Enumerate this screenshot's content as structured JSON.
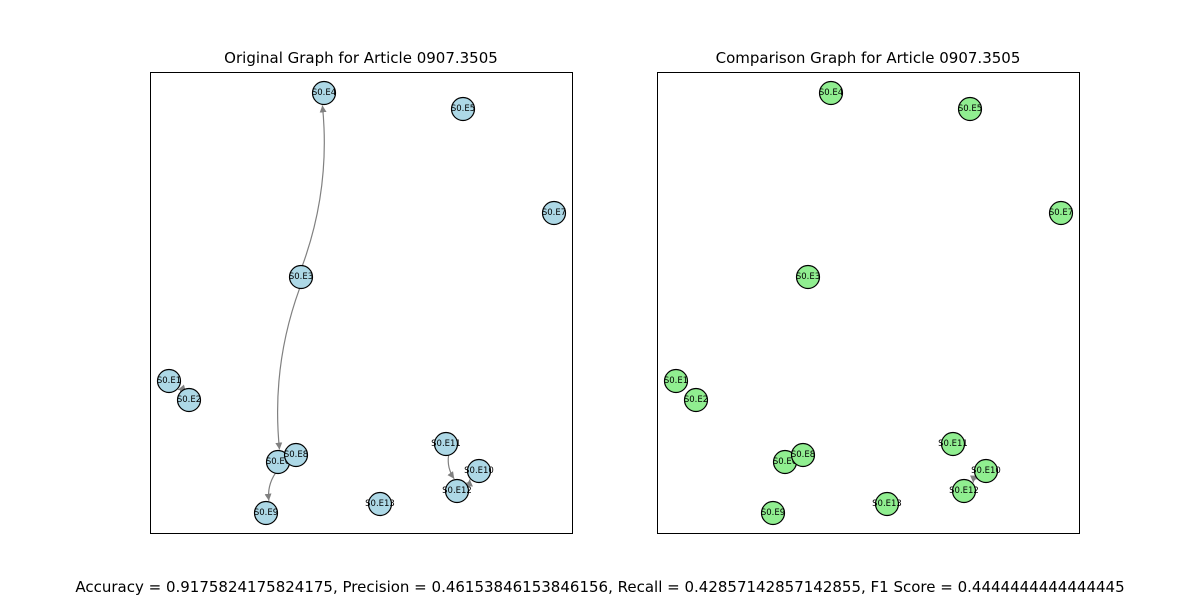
{
  "panels": [
    {
      "title": "Original Graph for Article 0907.3505",
      "node_color": "#add8e6"
    },
    {
      "title": "Comparison Graph for Article 0907.3505",
      "node_color": "#90ee90"
    }
  ],
  "nodes": [
    "S0.E1",
    "S0.E2",
    "S0.E3",
    "S0.E4",
    "S0.E5",
    "S0.E6",
    "S0.E7",
    "S0.E8",
    "S0.E9",
    "S0.E10",
    "S0.E11",
    "S0.E12",
    "S0.E13"
  ],
  "edges_original": [
    [
      "S0.E3",
      "S0.E4"
    ],
    [
      "S0.E3",
      "S0.E6"
    ],
    [
      "S0.E6",
      "S0.E9"
    ],
    [
      "S0.E2",
      "S0.E1"
    ],
    [
      "S0.E11",
      "S0.E12"
    ],
    [
      "S0.E12",
      "S0.E10"
    ]
  ],
  "edges_comparison": [
    [
      "S0.E10",
      "S0.E12"
    ]
  ],
  "edge_color": "#808080",
  "metrics_text": "Accuracy = 0.9175824175824175, Precision = 0.46153846153846156, Recall = 0.42857142857142855, F1 Score = 0.4444444444444445"
}
